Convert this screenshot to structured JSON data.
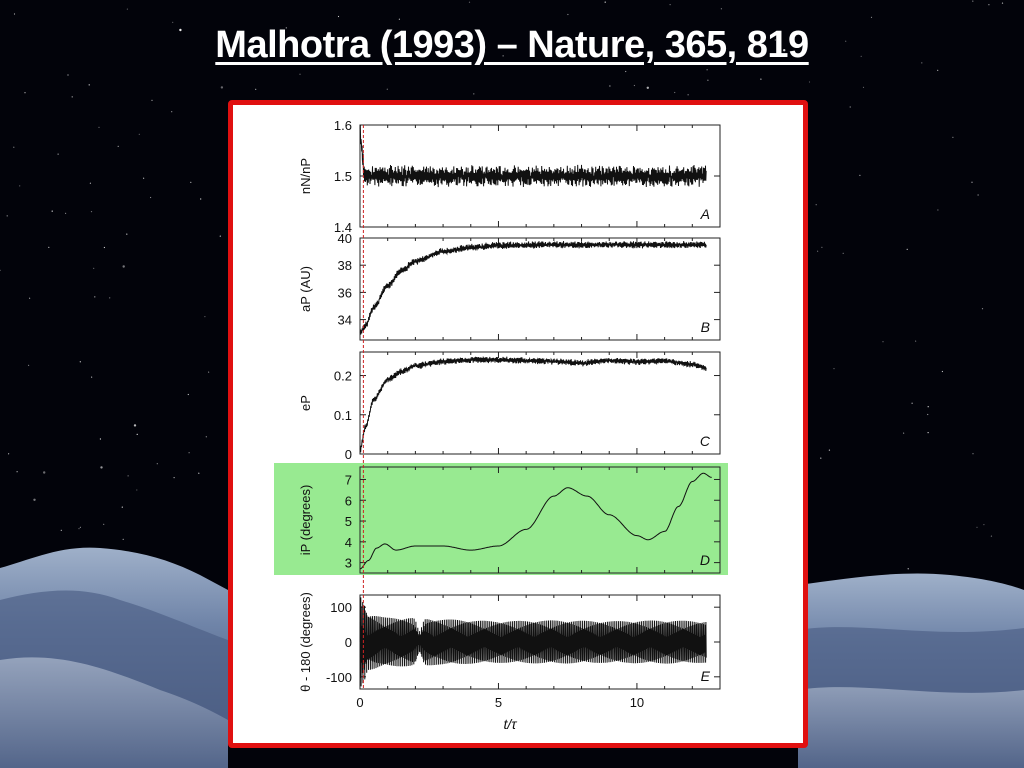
{
  "slide": {
    "title": "Malhotra (1993) – Nature, 365, 819",
    "colors": {
      "background": "#02030a",
      "title_text": "#ffffff",
      "frame_border": "#e01010",
      "highlight": "#86e67e",
      "curve": "#111111",
      "marker_line": "#cc2222"
    }
  },
  "chart_data": [
    {
      "type": "line",
      "panel_label": "A",
      "ylabel": "nN/nP",
      "ylim": [
        1.4,
        1.6
      ],
      "yticks": [
        1.4,
        1.5,
        1.6
      ],
      "xlim": [
        0,
        13
      ],
      "series": [
        {
          "x": [
            0,
            0.05,
            0.15,
            0.3,
            1,
            3,
            5,
            7,
            9,
            11,
            12.5
          ],
          "y": [
            1.6,
            1.56,
            1.51,
            1.5,
            1.5,
            1.5,
            1.5,
            1.5,
            1.5,
            1.5,
            1.5
          ],
          "oscillation_amplitude": 0.02
        }
      ]
    },
    {
      "type": "line",
      "panel_label": "B",
      "ylabel": "aP (AU)",
      "ylim": [
        32.5,
        40
      ],
      "yticks": [
        34,
        36,
        38,
        40
      ],
      "xlim": [
        0,
        13
      ],
      "series": [
        {
          "x": [
            0,
            0.2,
            0.5,
            1,
            1.5,
            2,
            3,
            4,
            5,
            7,
            9,
            11,
            12.5
          ],
          "y": [
            33,
            33.6,
            34.9,
            36.5,
            37.6,
            38.3,
            39.0,
            39.3,
            39.45,
            39.5,
            39.5,
            39.5,
            39.5
          ],
          "oscillation_amplitude": 0.25
        }
      ]
    },
    {
      "type": "line",
      "panel_label": "C",
      "ylabel": "eP",
      "ylim": [
        0,
        0.26
      ],
      "yticks": [
        0,
        0.1,
        0.2
      ],
      "xlim": [
        0,
        13
      ],
      "series": [
        {
          "x": [
            0,
            0.2,
            0.5,
            1,
            1.5,
            2,
            3,
            4,
            5,
            6,
            7,
            8,
            9,
            10,
            11,
            12,
            12.5
          ],
          "y": [
            0.01,
            0.07,
            0.14,
            0.19,
            0.21,
            0.225,
            0.235,
            0.24,
            0.24,
            0.238,
            0.236,
            0.232,
            0.238,
            0.235,
            0.237,
            0.228,
            0.22
          ],
          "oscillation_amplitude": 0.008
        }
      ]
    },
    {
      "type": "line",
      "panel_label": "D",
      "ylabel": "iP (degrees)",
      "ylim": [
        2.5,
        7.6
      ],
      "yticks": [
        3,
        4,
        5,
        6,
        7
      ],
      "xlim": [
        0,
        13
      ],
      "highlighted": true,
      "series": [
        {
          "x": [
            0,
            0.3,
            0.6,
            0.9,
            1.3,
            2,
            3,
            4,
            5,
            6,
            7,
            7.5,
            8.2,
            9,
            10,
            10.4,
            11,
            11.5,
            12,
            12.4,
            12.7
          ],
          "y": [
            2.7,
            3.1,
            3.7,
            3.9,
            3.6,
            3.8,
            3.8,
            3.6,
            3.8,
            4.6,
            6.2,
            6.6,
            6.2,
            5.3,
            4.3,
            4.1,
            4.5,
            5.7,
            6.9,
            7.3,
            7.1
          ]
        }
      ]
    },
    {
      "type": "line",
      "panel_label": "E",
      "ylabel": "θ - 180 (degrees)",
      "ylim": [
        -135,
        135
      ],
      "yticks": [
        -100,
        0,
        100
      ],
      "xlabel": "t/τ",
      "xlim": [
        0,
        13
      ],
      "xticks": [
        0,
        5,
        10
      ],
      "series": [
        {
          "x": [
            0,
            0.1,
            0.3,
            1,
            2,
            3,
            5,
            7,
            9,
            11,
            12.5
          ],
          "amplitude": [
            135,
            120,
            80,
            70,
            70,
            65,
            60,
            62,
            60,
            62,
            60
          ]
        }
      ]
    }
  ]
}
